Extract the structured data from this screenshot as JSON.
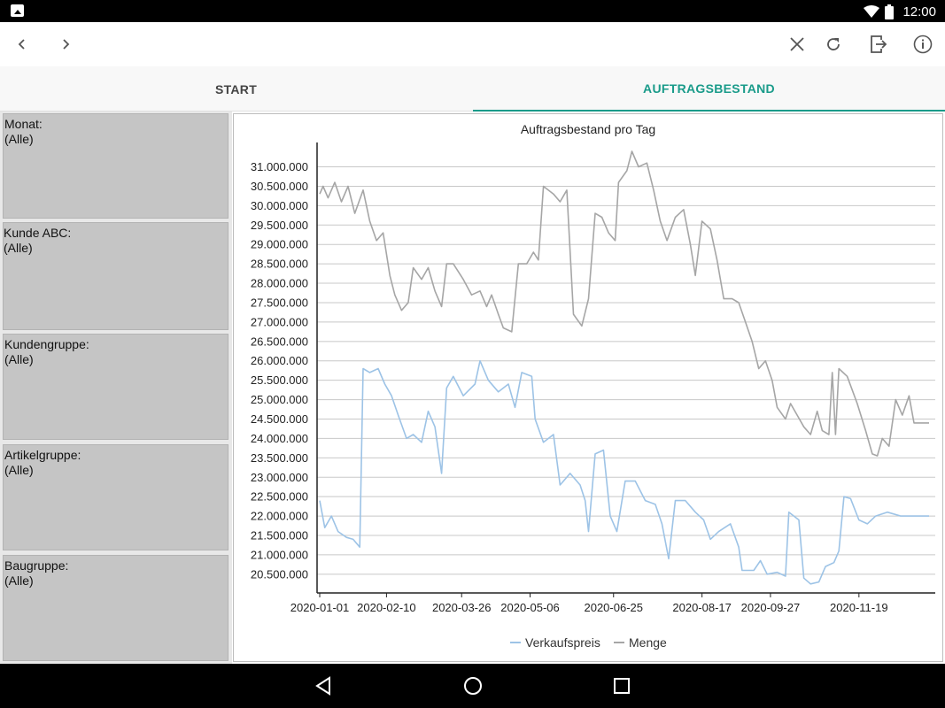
{
  "status_bar": {
    "time": "12:00",
    "icons": [
      "image-icon",
      "wifi-icon",
      "battery-icon"
    ]
  },
  "toolbar": {
    "icons": [
      "back-icon",
      "forward-icon",
      "close-icon",
      "refresh-icon",
      "export-icon",
      "info-icon"
    ]
  },
  "tabs": [
    {
      "label": "START",
      "active": false
    },
    {
      "label": "AUFTRAGSBESTAND",
      "active": true
    }
  ],
  "colors": {
    "accent": "#1a9b8a",
    "filter_bg": "#c5c5c5",
    "series_sales": "#9dc3e6",
    "series_qty": "#a6a6a6"
  },
  "filters": [
    {
      "label": "Monat:",
      "value": "(Alle)"
    },
    {
      "label": "Kunde ABC:",
      "value": "(Alle)"
    },
    {
      "label": "Kundengruppe:",
      "value": "(Alle)"
    },
    {
      "label": "Artikelgruppe:",
      "value": "(Alle)"
    },
    {
      "label": "Baugruppe:",
      "value": "(Alle)"
    }
  ],
  "chart_data": {
    "type": "line",
    "title": "Auftragsbestand pro Tag",
    "xlabel": "",
    "ylabel": "",
    "x_range": [
      "2020-01-01",
      "2020-12-31"
    ],
    "ylim": [
      20200000,
      31400000
    ],
    "grid": true,
    "legend": "bottom",
    "x_tick_labels": [
      "2020-01-01",
      "2020-02-10",
      "2020-03-26",
      "2020-05-06",
      "2020-06-25",
      "2020-08-17",
      "2020-09-27",
      "2020-11-19"
    ],
    "y_tick_labels": [
      "31.000.000",
      "30.500.000",
      "30.000.000",
      "29.500.000",
      "29.000.000",
      "28.500.000",
      "28.000.000",
      "27.500.000",
      "27.000.000",
      "26.500.000",
      "26.000.000",
      "25.500.000",
      "25.000.000",
      "24.500.000",
      "24.000.000",
      "23.500.000",
      "23.000.000",
      "22.500.000",
      "22.000.000",
      "21.500.000",
      "21.000.000",
      "20.500.000"
    ],
    "series": [
      {
        "name": "Verkaufspreis",
        "points": [
          [
            "2020-01-01",
            22400000
          ],
          [
            "2020-01-04",
            21700000
          ],
          [
            "2020-01-08",
            22000000
          ],
          [
            "2020-01-12",
            21600000
          ],
          [
            "2020-01-17",
            21450000
          ],
          [
            "2020-01-21",
            21400000
          ],
          [
            "2020-01-25",
            21200000
          ],
          [
            "2020-01-27",
            25800000
          ],
          [
            "2020-01-31",
            25700000
          ],
          [
            "2020-02-05",
            25800000
          ],
          [
            "2020-02-09",
            25400000
          ],
          [
            "2020-02-13",
            25100000
          ],
          [
            "2020-02-17",
            24600000
          ],
          [
            "2020-02-22",
            24000000
          ],
          [
            "2020-02-26",
            24100000
          ],
          [
            "2020-03-02",
            23900000
          ],
          [
            "2020-03-06",
            24700000
          ],
          [
            "2020-03-10",
            24300000
          ],
          [
            "2020-03-14",
            23100000
          ],
          [
            "2020-03-17",
            25300000
          ],
          [
            "2020-03-21",
            25600000
          ],
          [
            "2020-03-27",
            25100000
          ],
          [
            "2020-04-03",
            25400000
          ],
          [
            "2020-04-06",
            26000000
          ],
          [
            "2020-04-11",
            25500000
          ],
          [
            "2020-04-17",
            25200000
          ],
          [
            "2020-04-23",
            25400000
          ],
          [
            "2020-04-27",
            24800000
          ],
          [
            "2020-05-01",
            25700000
          ],
          [
            "2020-05-07",
            25600000
          ],
          [
            "2020-05-09",
            24500000
          ],
          [
            "2020-05-14",
            23900000
          ],
          [
            "2020-05-20",
            24100000
          ],
          [
            "2020-05-24",
            22800000
          ],
          [
            "2020-05-30",
            23100000
          ],
          [
            "2020-06-05",
            22800000
          ],
          [
            "2020-06-08",
            22400000
          ],
          [
            "2020-06-10",
            21600000
          ],
          [
            "2020-06-14",
            23600000
          ],
          [
            "2020-06-19",
            23700000
          ],
          [
            "2020-06-23",
            22000000
          ],
          [
            "2020-06-27",
            21600000
          ],
          [
            "2020-07-02",
            22900000
          ],
          [
            "2020-07-08",
            22900000
          ],
          [
            "2020-07-14",
            22400000
          ],
          [
            "2020-07-20",
            22300000
          ],
          [
            "2020-07-24",
            21800000
          ],
          [
            "2020-07-28",
            20900000
          ],
          [
            "2020-08-01",
            22400000
          ],
          [
            "2020-08-07",
            22400000
          ],
          [
            "2020-08-13",
            22100000
          ],
          [
            "2020-08-18",
            21900000
          ],
          [
            "2020-08-22",
            21400000
          ],
          [
            "2020-08-27",
            21600000
          ],
          [
            "2020-09-03",
            21800000
          ],
          [
            "2020-09-08",
            21200000
          ],
          [
            "2020-09-10",
            20600000
          ],
          [
            "2020-09-17",
            20600000
          ],
          [
            "2020-09-21",
            20850000
          ],
          [
            "2020-09-25",
            20500000
          ],
          [
            "2020-10-01",
            20550000
          ],
          [
            "2020-10-06",
            20450000
          ],
          [
            "2020-10-08",
            22100000
          ],
          [
            "2020-10-14",
            21900000
          ],
          [
            "2020-10-17",
            20400000
          ],
          [
            "2020-10-21",
            20250000
          ],
          [
            "2020-10-26",
            20300000
          ],
          [
            "2020-10-30",
            20700000
          ],
          [
            "2020-11-04",
            20800000
          ],
          [
            "2020-11-07",
            21100000
          ],
          [
            "2020-11-10",
            22500000
          ],
          [
            "2020-11-14",
            22450000
          ],
          [
            "2020-11-19",
            21900000
          ],
          [
            "2020-11-24",
            21800000
          ],
          [
            "2020-11-29",
            22000000
          ],
          [
            "2020-12-06",
            22100000
          ],
          [
            "2020-12-14",
            22000000
          ],
          [
            "2020-12-31",
            22000000
          ]
        ]
      },
      {
        "name": "Menge",
        "points": [
          [
            "2020-01-01",
            30300000
          ],
          [
            "2020-01-03",
            30500000
          ],
          [
            "2020-01-06",
            30200000
          ],
          [
            "2020-01-10",
            30600000
          ],
          [
            "2020-01-14",
            30100000
          ],
          [
            "2020-01-18",
            30500000
          ],
          [
            "2020-01-22",
            29800000
          ],
          [
            "2020-01-27",
            30400000
          ],
          [
            "2020-01-31",
            29600000
          ],
          [
            "2020-02-04",
            29100000
          ],
          [
            "2020-02-08",
            29300000
          ],
          [
            "2020-02-12",
            28200000
          ],
          [
            "2020-02-15",
            27700000
          ],
          [
            "2020-02-19",
            27300000
          ],
          [
            "2020-02-23",
            27500000
          ],
          [
            "2020-02-26",
            28400000
          ],
          [
            "2020-03-02",
            28100000
          ],
          [
            "2020-03-06",
            28400000
          ],
          [
            "2020-03-10",
            27800000
          ],
          [
            "2020-03-14",
            27400000
          ],
          [
            "2020-03-17",
            28500000
          ],
          [
            "2020-03-21",
            28500000
          ],
          [
            "2020-03-27",
            28100000
          ],
          [
            "2020-04-01",
            27700000
          ],
          [
            "2020-04-06",
            27800000
          ],
          [
            "2020-04-10",
            27400000
          ],
          [
            "2020-04-13",
            27700000
          ],
          [
            "2020-04-17",
            27200000
          ],
          [
            "2020-04-20",
            26850000
          ],
          [
            "2020-04-25",
            26750000
          ],
          [
            "2020-04-29",
            28500000
          ],
          [
            "2020-05-04",
            28500000
          ],
          [
            "2020-05-08",
            28800000
          ],
          [
            "2020-05-11",
            28600000
          ],
          [
            "2020-05-14",
            30500000
          ],
          [
            "2020-05-20",
            30300000
          ],
          [
            "2020-05-24",
            30100000
          ],
          [
            "2020-05-28",
            30400000
          ],
          [
            "2020-06-01",
            27200000
          ],
          [
            "2020-06-06",
            26900000
          ],
          [
            "2020-06-10",
            27600000
          ],
          [
            "2020-06-14",
            29800000
          ],
          [
            "2020-06-18",
            29700000
          ],
          [
            "2020-06-22",
            29300000
          ],
          [
            "2020-06-26",
            29100000
          ],
          [
            "2020-06-28",
            30600000
          ],
          [
            "2020-07-03",
            30900000
          ],
          [
            "2020-07-06",
            31400000
          ],
          [
            "2020-07-10",
            31000000
          ],
          [
            "2020-07-15",
            31100000
          ],
          [
            "2020-07-19",
            30400000
          ],
          [
            "2020-07-23",
            29600000
          ],
          [
            "2020-07-27",
            29100000
          ],
          [
            "2020-08-01",
            29700000
          ],
          [
            "2020-08-06",
            29900000
          ],
          [
            "2020-08-10",
            29000000
          ],
          [
            "2020-08-13",
            28200000
          ],
          [
            "2020-08-17",
            29600000
          ],
          [
            "2020-08-22",
            29400000
          ],
          [
            "2020-08-26",
            28600000
          ],
          [
            "2020-08-30",
            27600000
          ],
          [
            "2020-09-04",
            27600000
          ],
          [
            "2020-09-08",
            27500000
          ],
          [
            "2020-09-12",
            27000000
          ],
          [
            "2020-09-16",
            26500000
          ],
          [
            "2020-09-20",
            25800000
          ],
          [
            "2020-09-24",
            26000000
          ],
          [
            "2020-09-28",
            25500000
          ],
          [
            "2020-10-01",
            24800000
          ],
          [
            "2020-10-06",
            24500000
          ],
          [
            "2020-10-09",
            24900000
          ],
          [
            "2020-10-13",
            24600000
          ],
          [
            "2020-10-17",
            24300000
          ],
          [
            "2020-10-21",
            24100000
          ],
          [
            "2020-10-25",
            24700000
          ],
          [
            "2020-10-28",
            24200000
          ],
          [
            "2020-11-01",
            24100000
          ],
          [
            "2020-11-03",
            25700000
          ],
          [
            "2020-11-05",
            24100000
          ],
          [
            "2020-11-07",
            25800000
          ],
          [
            "2020-11-12",
            25600000
          ],
          [
            "2020-11-18",
            24900000
          ],
          [
            "2020-11-23",
            24200000
          ],
          [
            "2020-11-27",
            23600000
          ],
          [
            "2020-11-30",
            23550000
          ],
          [
            "2020-12-03",
            24000000
          ],
          [
            "2020-12-07",
            23800000
          ],
          [
            "2020-12-11",
            25000000
          ],
          [
            "2020-12-15",
            24600000
          ],
          [
            "2020-12-19",
            25100000
          ],
          [
            "2020-12-22",
            24400000
          ],
          [
            "2020-12-31",
            24400000
          ]
        ]
      }
    ]
  }
}
